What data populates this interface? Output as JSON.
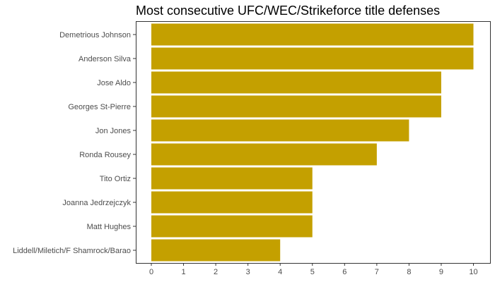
{
  "chart_data": {
    "type": "bar",
    "orientation": "horizontal",
    "title": "Most consecutive UFC/WEC/Strikeforce title defenses",
    "xlabel": "",
    "ylabel": "",
    "categories": [
      "Demetrious Johnson",
      "Anderson Silva",
      "Jose Aldo",
      "Georges St-Pierre",
      "Jon Jones",
      "Ronda Rousey",
      "Tito Ortiz",
      "Joanna Jedrzejczyk",
      "Matt Hughes",
      "Liddell/Miletich/F Shamrock/Barao"
    ],
    "values": [
      10,
      10,
      9,
      9,
      8,
      7,
      5,
      5,
      5,
      4
    ],
    "xlim": [
      0,
      10
    ],
    "xticks": [
      "0",
      "1",
      "2",
      "3",
      "4",
      "5",
      "6",
      "7",
      "8",
      "9",
      "10"
    ],
    "grid": false,
    "legend": "none",
    "bar_color": "#C4A000"
  }
}
